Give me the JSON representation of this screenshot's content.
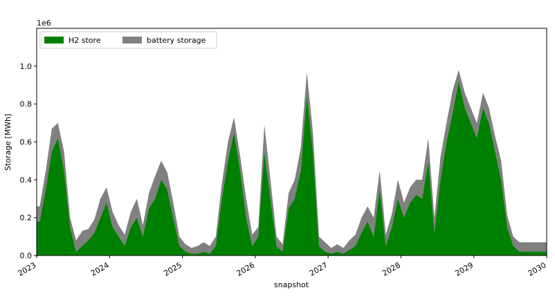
{
  "chart_data": {
    "type": "area",
    "stacked": true,
    "title": "",
    "xlabel": "snapshot",
    "ylabel": "Storage [MWh]",
    "y_offset_label": "1e6",
    "xlim": [
      "2023",
      "2030"
    ],
    "x_tick_labels": [
      "2023",
      "2024",
      "2025",
      "2026",
      "2027",
      "2028",
      "2029",
      "2030"
    ],
    "ylim": [
      0,
      1.2
    ],
    "y_ticks": [
      0.0,
      0.2,
      0.4,
      0.6,
      0.8,
      1.0
    ],
    "y_tick_labels": [
      "0.0",
      "0.2",
      "0.4",
      "0.6",
      "0.8",
      "1.0"
    ],
    "legend_position": "top-left",
    "grid": false,
    "x": [
      "2023-01",
      "2023-02",
      "2023-03",
      "2023-04",
      "2023-05",
      "2023-06",
      "2023-07",
      "2023-08",
      "2023-09",
      "2023-10",
      "2023-11",
      "2023-12",
      "2024-01",
      "2024-02",
      "2024-03",
      "2024-04",
      "2024-05",
      "2024-06",
      "2024-07",
      "2024-08",
      "2024-09",
      "2024-10",
      "2024-11",
      "2024-12",
      "2025-01",
      "2025-02",
      "2025-03",
      "2025-04",
      "2025-05",
      "2025-06",
      "2025-07",
      "2025-08",
      "2025-09",
      "2025-10",
      "2025-11",
      "2025-12",
      "2026-01",
      "2026-02",
      "2026-03",
      "2026-04",
      "2026-05",
      "2026-06",
      "2026-07",
      "2026-08",
      "2026-09",
      "2026-10",
      "2026-11",
      "2026-12",
      "2027-01",
      "2027-02",
      "2027-03",
      "2027-04",
      "2027-05",
      "2027-06",
      "2027-07",
      "2027-08",
      "2027-09",
      "2027-10",
      "2027-11",
      "2027-12",
      "2028-01",
      "2028-02",
      "2028-03",
      "2028-04",
      "2028-05",
      "2028-06",
      "2028-07",
      "2028-08",
      "2028-09",
      "2028-10",
      "2028-11",
      "2028-12",
      "2029-01",
      "2029-02",
      "2029-03",
      "2029-04",
      "2029-05",
      "2029-06",
      "2029-07",
      "2029-08",
      "2029-09",
      "2029-10",
      "2029-11",
      "2029-12"
    ],
    "series": [
      {
        "name": "H2 store",
        "color": "#008000",
        "values": [
          0.18,
          0.35,
          0.55,
          0.62,
          0.45,
          0.15,
          0.02,
          0.05,
          0.08,
          0.12,
          0.2,
          0.28,
          0.15,
          0.1,
          0.05,
          0.15,
          0.2,
          0.1,
          0.25,
          0.3,
          0.4,
          0.35,
          0.2,
          0.05,
          0.02,
          0.01,
          0.01,
          0.02,
          0.01,
          0.05,
          0.3,
          0.5,
          0.65,
          0.45,
          0.2,
          0.05,
          0.1,
          0.55,
          0.3,
          0.05,
          0.02,
          0.25,
          0.3,
          0.45,
          0.85,
          0.55,
          0.05,
          0.02,
          0.01,
          0.02,
          0.01,
          0.03,
          0.05,
          0.12,
          0.18,
          0.1,
          0.35,
          0.05,
          0.15,
          0.3,
          0.2,
          0.28,
          0.32,
          0.3,
          0.5,
          0.12,
          0.4,
          0.6,
          0.75,
          0.92,
          0.78,
          0.7,
          0.62,
          0.78,
          0.7,
          0.55,
          0.4,
          0.15,
          0.05,
          0.02,
          0.02,
          0.02,
          0.02,
          0.02
        ]
      },
      {
        "name": "battery storage",
        "color": "#808080",
        "values": [
          0.08,
          0.1,
          0.12,
          0.08,
          0.1,
          0.05,
          0.06,
          0.08,
          0.06,
          0.07,
          0.1,
          0.08,
          0.08,
          0.06,
          0.06,
          0.08,
          0.1,
          0.06,
          0.08,
          0.12,
          0.1,
          0.09,
          0.08,
          0.05,
          0.04,
          0.03,
          0.04,
          0.05,
          0.04,
          0.05,
          0.08,
          0.1,
          0.08,
          0.08,
          0.1,
          0.06,
          0.05,
          0.14,
          0.1,
          0.05,
          0.04,
          0.08,
          0.1,
          0.12,
          0.12,
          0.1,
          0.05,
          0.05,
          0.03,
          0.04,
          0.03,
          0.05,
          0.06,
          0.08,
          0.08,
          0.1,
          0.1,
          0.06,
          0.07,
          0.1,
          0.08,
          0.08,
          0.08,
          0.1,
          0.12,
          0.08,
          0.12,
          0.1,
          0.12,
          0.06,
          0.08,
          0.08,
          0.08,
          0.08,
          0.08,
          0.08,
          0.1,
          0.06,
          0.05,
          0.05,
          0.05,
          0.05,
          0.05,
          0.05
        ]
      }
    ]
  }
}
